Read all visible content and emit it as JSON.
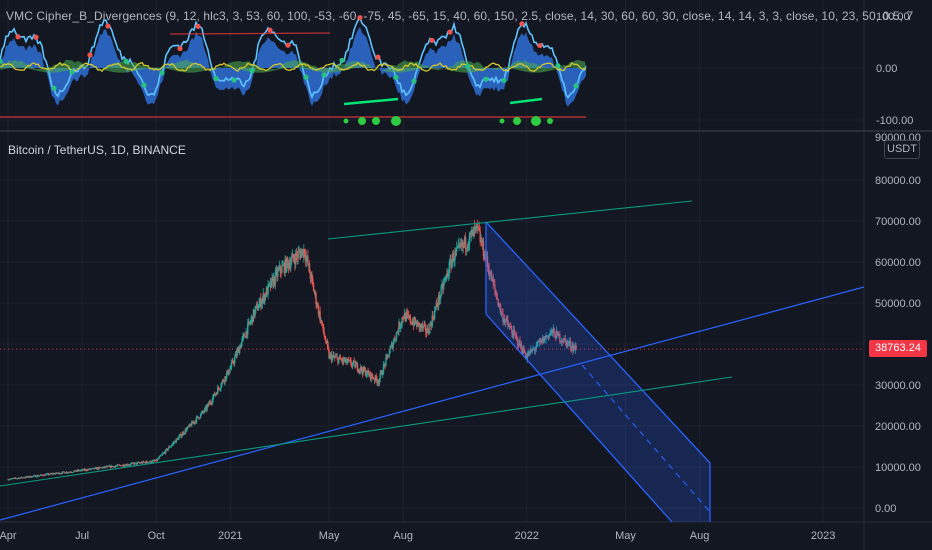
{
  "indicator": {
    "title": "VMC Cipher_B_Divergences (9, 12, hlc3, 3, 53, 60, 100, -53, -60, -75, 45, -65, 15, 40, 60, 150, 2.5, close, 14, 30, 60, 60, 30, close, 14, 14, 3, 3, close, 10, 23, 50, 0.5, 7",
    "y_ticks": [
      "100.00",
      "0.00",
      "-100.00"
    ],
    "top_cut_label": "90000.00"
  },
  "main": {
    "symbol_title": "Bitcoin / TetherUS, 1D, BINANCE",
    "currency_button": "USDT",
    "last_price": "38763.24",
    "price_ticks": [
      "80000.00",
      "70000.00",
      "60000.00",
      "50000.00",
      "40000.00",
      "30000.00",
      "20000.00",
      "10000.00",
      "0.00"
    ],
    "time_ticks": [
      "Apr",
      "Jul",
      "Oct",
      "2021",
      "May",
      "Aug",
      "2022",
      "May",
      "Aug",
      "2023"
    ]
  },
  "colors": {
    "background": "#131722",
    "up_candle": "#26a69a",
    "down_candle": "#ef5350",
    "trendline_blue": "#2962ff",
    "trendline_green": "#089981",
    "channel_fill": "#2962ff",
    "price_tag": "#f23645",
    "wave_fill": "#2f6fd6",
    "wave_line": "#5ec3ff",
    "money_flow": "#d4c72c",
    "divergence_green": "#00e676",
    "divergence_red": "#ff3d3d"
  },
  "chart_data": {
    "type": "candlestick",
    "title": "Bitcoin / TetherUS, 1D, BINANCE",
    "y_unit": "USDT",
    "ylim": [
      -3000,
      90000
    ],
    "x_range": [
      "2020-04",
      "2023-03"
    ],
    "approx_closes": [
      {
        "date": "2020-04",
        "close": 7000
      },
      {
        "date": "2020-07",
        "close": 9200
      },
      {
        "date": "2020-10",
        "close": 11500
      },
      {
        "date": "2020-12",
        "close": 24000
      },
      {
        "date": "2021-01",
        "close": 34000
      },
      {
        "date": "2021-02",
        "close": 48000
      },
      {
        "date": "2021-03",
        "close": 58000
      },
      {
        "date": "2021-04",
        "close": 63000
      },
      {
        "date": "2021-05",
        "close": 37000
      },
      {
        "date": "2021-06",
        "close": 35000
      },
      {
        "date": "2021-07",
        "close": 31000
      },
      {
        "date": "2021-08",
        "close": 47000
      },
      {
        "date": "2021-09",
        "close": 43000
      },
      {
        "date": "2021-10",
        "close": 61000
      },
      {
        "date": "2021-11",
        "close": 68000
      },
      {
        "date": "2021-12",
        "close": 47000
      },
      {
        "date": "2022-01",
        "close": 37000
      },
      {
        "date": "2022-02",
        "close": 43000
      },
      {
        "date": "2022-03",
        "close": 38763
      }
    ],
    "last_price": 38763.24,
    "indicator_ylim": [
      -110,
      130
    ],
    "indicator_ticks": [
      100,
      0,
      -100
    ],
    "grid": true
  }
}
